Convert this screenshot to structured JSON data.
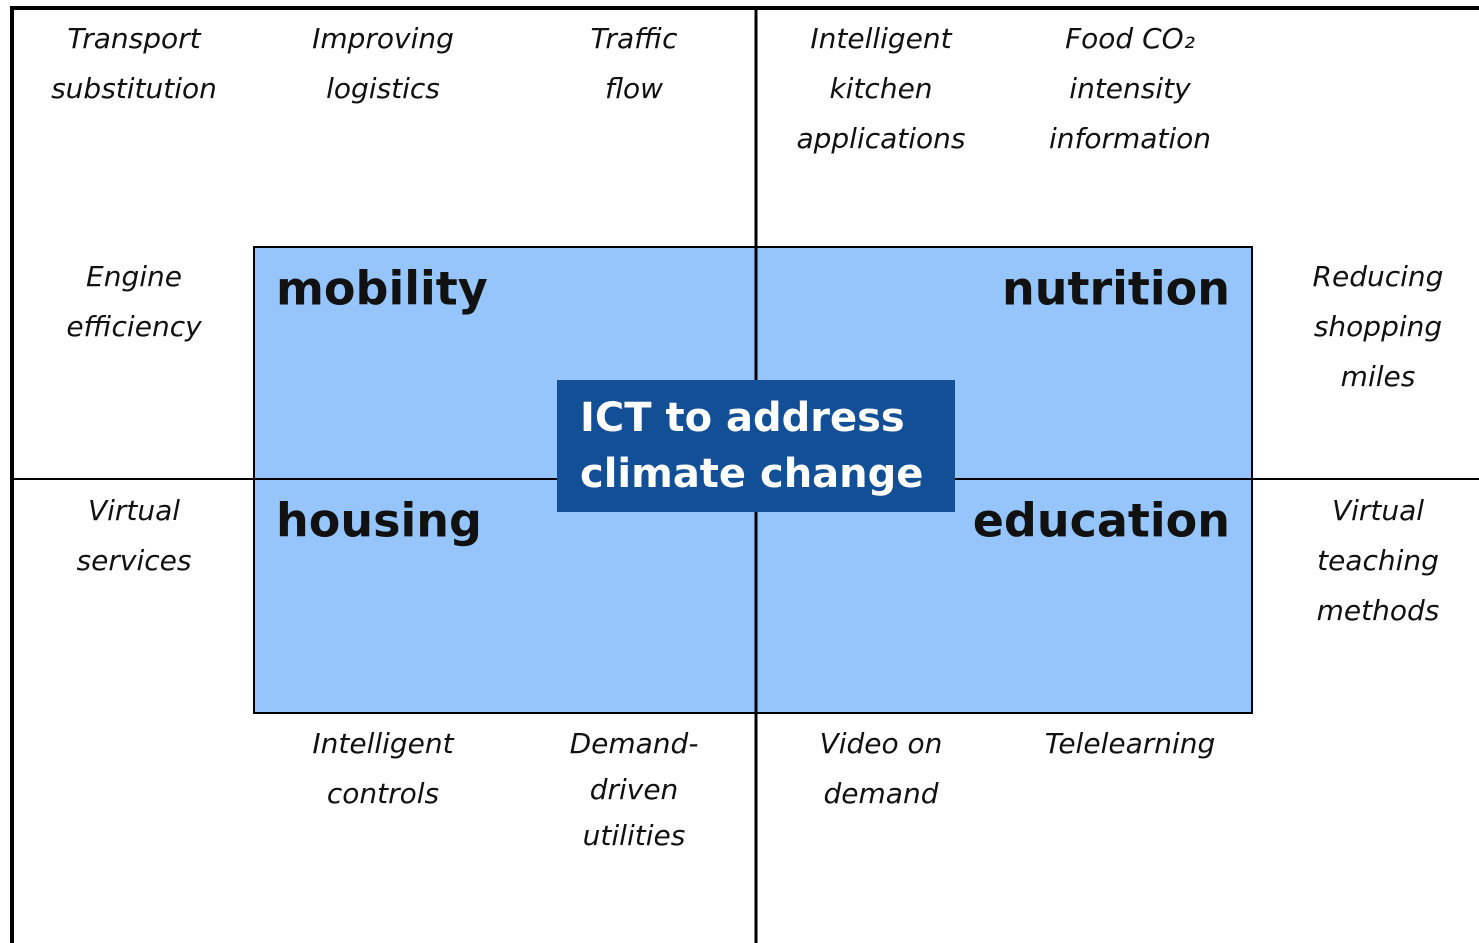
{
  "center": {
    "lines": [
      "ICT to address",
      "climate change"
    ]
  },
  "quadrants": [
    "mobility",
    "nutrition",
    "housing",
    "education"
  ],
  "items": [
    {
      "lines": [
        "Transport",
        "substitution"
      ]
    },
    {
      "lines": [
        "Improving",
        "logistics"
      ]
    },
    {
      "lines": [
        "Traffic",
        "flow"
      ]
    },
    {
      "lines": [
        "Intelligent",
        "kitchen",
        "applications"
      ]
    },
    {
      "lines": [
        "Food CO₂",
        "intensity",
        "information"
      ]
    },
    {
      "lines": [
        "Engine",
        "efficiency"
      ]
    },
    {
      "lines": [
        "Reducing",
        "shopping",
        "miles"
      ]
    },
    {
      "lines": [
        "Virtual",
        "services"
      ]
    },
    {
      "lines": [
        "Virtual",
        "teaching",
        "methods"
      ]
    },
    {
      "lines": [
        "Intelligent",
        "controls"
      ]
    },
    {
      "lines": [
        "Demand-",
        "driven",
        "utilities"
      ]
    },
    {
      "lines": [
        "Video on",
        "demand"
      ]
    },
    {
      "lines": [
        "Telelearning"
      ]
    }
  ]
}
